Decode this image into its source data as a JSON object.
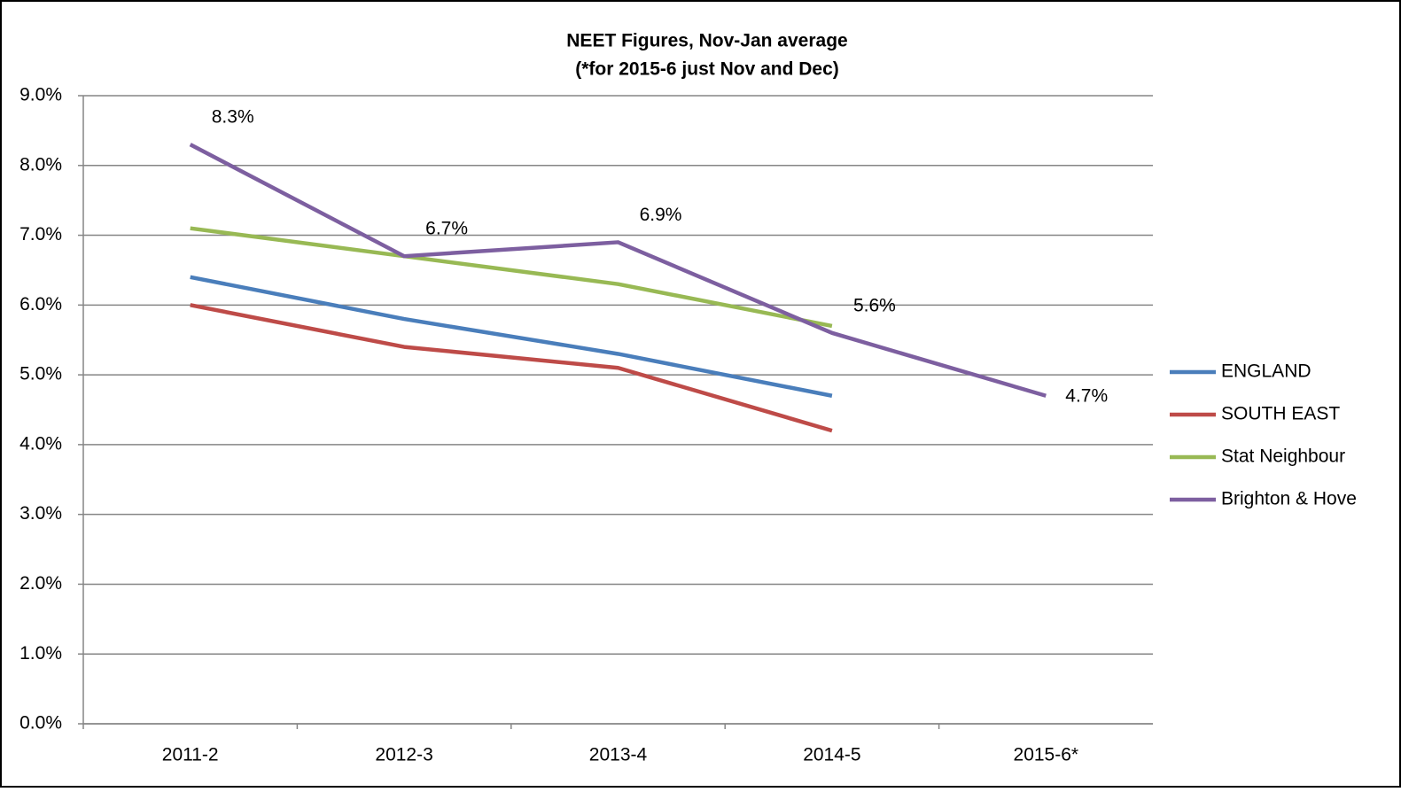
{
  "chart_data": {
    "type": "line",
    "title": "NEET Figures, Nov-Jan average",
    "subtitle": "(*for 2015-6 just Nov and Dec)",
    "categories": [
      "2011-2",
      "2012-3",
      "2013-4",
      "2014-5",
      "2015-6*"
    ],
    "series": [
      {
        "name": "ENGLAND",
        "color": "#4a7ebb",
        "values": [
          6.4,
          5.8,
          5.3,
          4.7,
          null
        ]
      },
      {
        "name": "SOUTH EAST",
        "color": "#be4b48",
        "values": [
          6.0,
          5.4,
          5.1,
          4.2,
          null
        ]
      },
      {
        "name": "Stat Neighbour",
        "color": "#98b954",
        "values": [
          7.1,
          6.7,
          6.3,
          5.7,
          null
        ]
      },
      {
        "name": "Brighton & Hove",
        "color": "#7d5fa0",
        "values": [
          8.3,
          6.7,
          6.9,
          5.6,
          4.7
        ],
        "value_labels": [
          "8.3%",
          "6.7%",
          "6.9%",
          "5.6%",
          "4.7%"
        ]
      }
    ],
    "ylim": [
      0,
      9
    ],
    "yticks": [
      {
        "value": 0,
        "label": "0.0%"
      },
      {
        "value": 1,
        "label": "1.0%"
      },
      {
        "value": 2,
        "label": "2.0%"
      },
      {
        "value": 3,
        "label": "3.0%"
      },
      {
        "value": 4,
        "label": "4.0%"
      },
      {
        "value": 5,
        "label": "5.0%"
      },
      {
        "value": 6,
        "label": "6.0%"
      },
      {
        "value": 7,
        "label": "7.0%"
      },
      {
        "value": 8,
        "label": "8.0%"
      },
      {
        "value": 9,
        "label": "9.0%"
      }
    ],
    "grid": true,
    "legend": "right"
  }
}
